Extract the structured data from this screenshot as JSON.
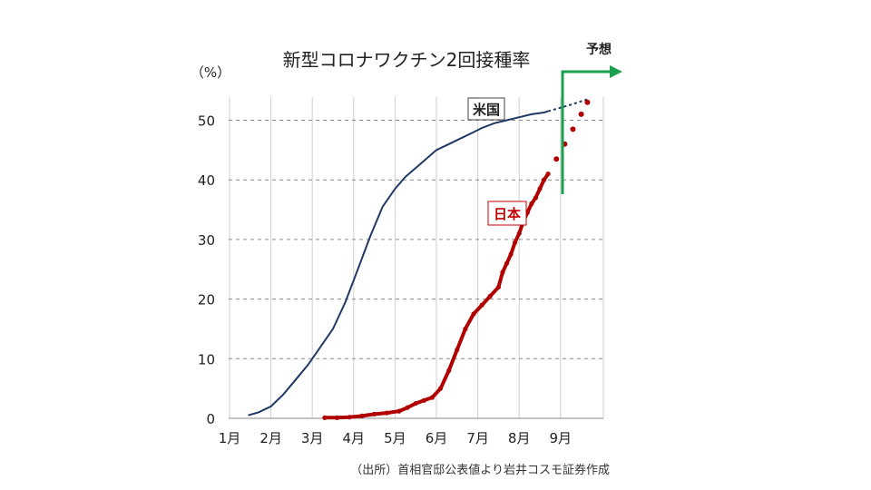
{
  "chart_data": {
    "type": "line",
    "title": "新型コロナワクチン2回接種率",
    "unit_label": "（%）",
    "source": "（出所）首相官邸公表値より岩井コスモ証券作成",
    "forecast_label": "予想",
    "x_ticks": [
      "1月",
      "2月",
      "3月",
      "4月",
      "5月",
      "6月",
      "7月",
      "8月",
      "9月"
    ],
    "y_ticks": [
      "0",
      "10",
      "20",
      "30",
      "40",
      "50"
    ],
    "xlim": [
      1,
      9.85
    ],
    "ylim": [
      0,
      55
    ],
    "grid": true,
    "colors": {
      "us": "#1f3864",
      "japan": "#b00000",
      "forecast_marker": "#1aa050"
    },
    "series": [
      {
        "name": "米国",
        "x": [
          1.45,
          1.7,
          2.0,
          2.3,
          2.6,
          2.9,
          3.2,
          3.5,
          3.8,
          4.1,
          4.4,
          4.7,
          5.0,
          5.25,
          5.5,
          5.75,
          6.0,
          6.3,
          6.6,
          6.9,
          7.1,
          7.4,
          7.7,
          8.0,
          8.3,
          8.6,
          8.7
        ],
        "y": [
          0.5,
          1.0,
          2.0,
          4.0,
          6.5,
          9.0,
          12.0,
          15.0,
          19.5,
          25.0,
          30.5,
          35.5,
          38.5,
          40.5,
          42.0,
          43.5,
          45.0,
          46.0,
          47.0,
          48.0,
          48.7,
          49.5,
          50.0,
          50.5,
          51.0,
          51.3,
          51.5
        ]
      },
      {
        "name": "米国 予想",
        "x": [
          8.7,
          9.2,
          9.65
        ],
        "y": [
          51.5,
          52.5,
          53.5
        ]
      },
      {
        "name": "日本",
        "x": [
          3.3,
          3.6,
          3.9,
          4.2,
          4.5,
          4.8,
          5.1,
          5.3,
          5.5,
          5.7,
          5.9,
          6.1,
          6.3,
          6.5,
          6.7,
          6.9,
          7.1,
          7.3,
          7.5,
          7.6,
          7.7,
          7.8,
          7.9,
          8.0,
          8.1,
          8.2,
          8.3,
          8.4,
          8.5,
          8.6,
          8.7
        ],
        "y": [
          0.1,
          0.1,
          0.2,
          0.4,
          0.7,
          0.9,
          1.2,
          1.8,
          2.5,
          3.0,
          3.5,
          5.0,
          8.0,
          11.5,
          15.0,
          17.5,
          19.0,
          20.5,
          22.0,
          24.5,
          26.0,
          27.5,
          29.5,
          31.0,
          33.0,
          34.5,
          36.0,
          37.0,
          38.5,
          40.0,
          41.0
        ]
      },
      {
        "name": "日本 予想",
        "x": [
          8.7,
          8.9,
          9.1,
          9.3,
          9.5,
          9.65
        ],
        "y": [
          41.0,
          43.5,
          46.0,
          48.5,
          51.0,
          53.0
        ]
      }
    ]
  }
}
